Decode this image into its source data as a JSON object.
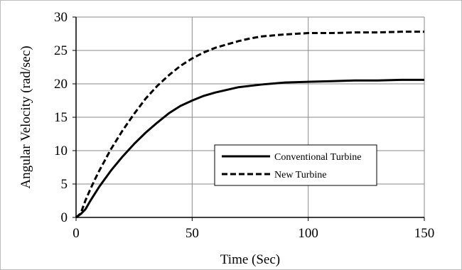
{
  "chart_data": {
    "type": "line",
    "title": "",
    "xlabel": "Time (Sec)",
    "ylabel": "Angular Velocity (rad/sec)",
    "xlim": [
      0,
      150
    ],
    "ylim": [
      0,
      30
    ],
    "x_ticks": [
      0,
      50,
      100,
      150
    ],
    "y_ticks": [
      0,
      5,
      10,
      15,
      20,
      25,
      30
    ],
    "grid": true,
    "legend_position": "center-right",
    "series": [
      {
        "name": "Conventional Turbine",
        "style": "solid",
        "color": "#000000",
        "x": [
          0,
          2,
          4,
          6,
          8,
          10,
          15,
          20,
          25,
          30,
          35,
          40,
          45,
          50,
          55,
          60,
          65,
          70,
          75,
          80,
          90,
          100,
          110,
          120,
          130,
          140,
          150
        ],
        "y": [
          0,
          0.5,
          1.2,
          2.4,
          3.5,
          4.6,
          7.0,
          9.1,
          11.0,
          12.7,
          14.2,
          15.6,
          16.7,
          17.5,
          18.2,
          18.7,
          19.1,
          19.5,
          19.7,
          19.9,
          20.2,
          20.3,
          20.4,
          20.5,
          20.5,
          20.6,
          20.6
        ]
      },
      {
        "name": "New Turbine",
        "style": "dashed",
        "color": "#000000",
        "x": [
          0,
          2,
          4,
          6,
          8,
          10,
          15,
          20,
          25,
          30,
          35,
          40,
          45,
          50,
          55,
          60,
          65,
          70,
          75,
          80,
          90,
          100,
          110,
          120,
          130,
          140,
          150
        ],
        "y": [
          0,
          0.6,
          2.5,
          4.1,
          5.6,
          7.0,
          10.2,
          13.0,
          15.5,
          17.8,
          19.7,
          21.3,
          22.7,
          23.8,
          24.7,
          25.4,
          25.9,
          26.4,
          26.8,
          27.1,
          27.4,
          27.6,
          27.6,
          27.7,
          27.7,
          27.8,
          27.8
        ]
      }
    ]
  }
}
